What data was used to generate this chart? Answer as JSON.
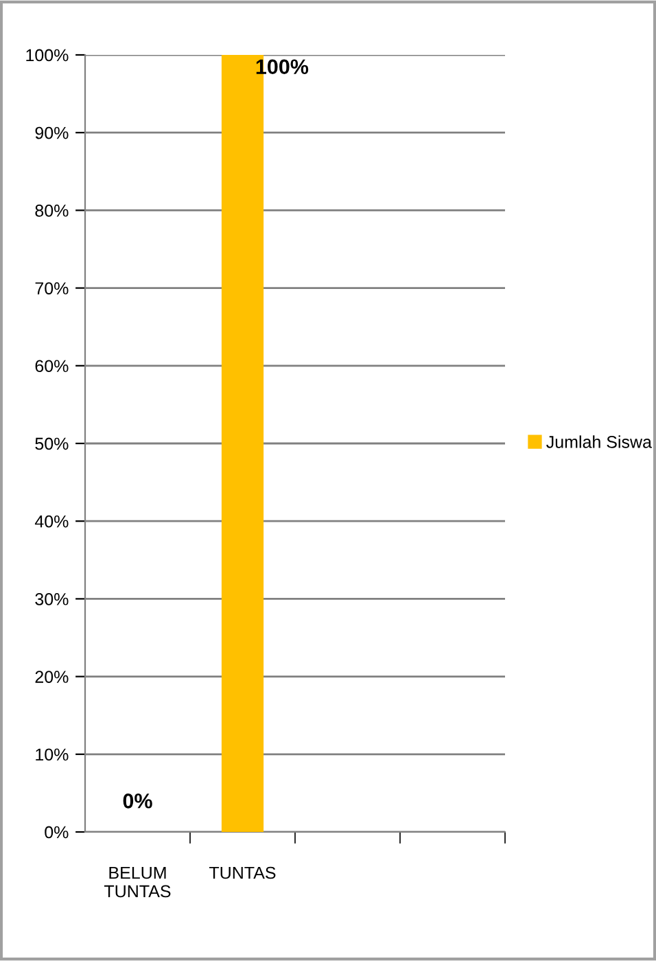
{
  "chart_data": {
    "type": "bar",
    "categories": [
      "BELUM\nTUNTAS",
      "TUNTAS",
      null,
      null
    ],
    "series": [
      {
        "name": "Jumlah Siswa",
        "color": "#ffc000",
        "values": [
          0,
          100,
          null,
          null
        ],
        "value_labels": [
          "0%",
          "100%",
          null,
          null
        ]
      }
    ],
    "ylim": [
      0,
      100
    ],
    "yticks": [
      {
        "value": 0,
        "label": "0%"
      },
      {
        "value": 10,
        "label": "10%"
      },
      {
        "value": 20,
        "label": "20%"
      },
      {
        "value": 30,
        "label": "30%"
      },
      {
        "value": 40,
        "label": "40%"
      },
      {
        "value": 50,
        "label": "50%"
      },
      {
        "value": 60,
        "label": "60%"
      },
      {
        "value": 70,
        "label": "70%"
      },
      {
        "value": 80,
        "label": "80%"
      },
      {
        "value": 90,
        "label": "90%"
      },
      {
        "value": 100,
        "label": "100%"
      }
    ],
    "grid": "y",
    "legend": "right"
  }
}
